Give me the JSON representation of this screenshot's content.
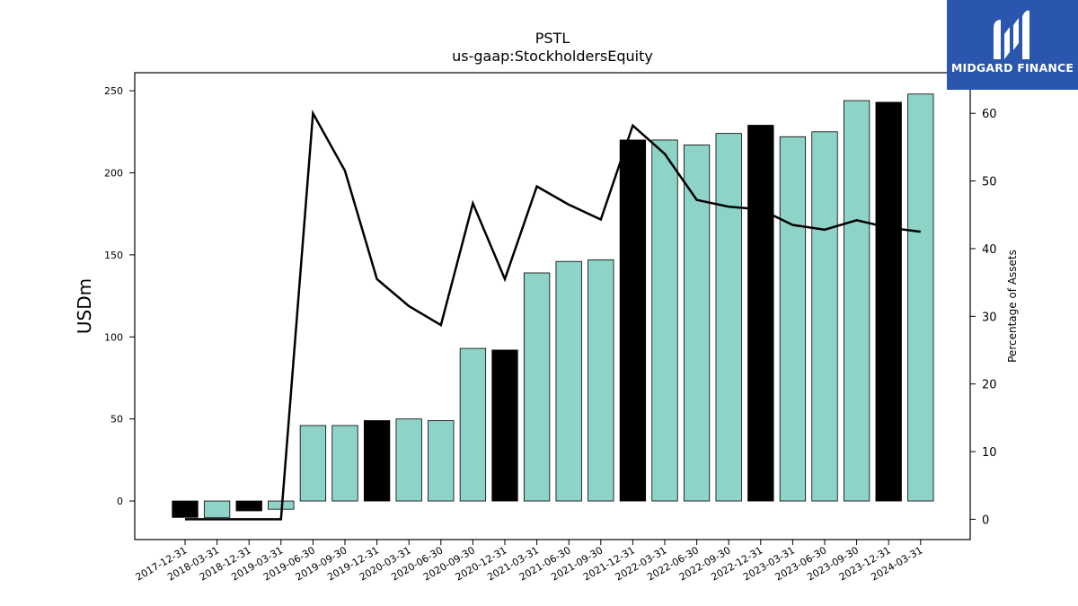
{
  "chart_data": {
    "type": "bar",
    "title": "PSTL",
    "subtitle": "us-gaap:StockholdersEquity",
    "ylabel": "USDm",
    "ylabel_right": "Percentage of Assets",
    "ylim": [
      -23.5,
      261
    ],
    "ylim_right": [
      -3,
      66
    ],
    "yticks": [
      0,
      50,
      100,
      150,
      200,
      250
    ],
    "yticks_right": [
      0,
      10,
      20,
      30,
      40,
      50,
      60
    ],
    "categories": [
      "2017-12-31",
      "2018-03-31",
      "2018-12-31",
      "2019-03-31",
      "2019-06-30",
      "2019-09-30",
      "2019-12-31",
      "2020-03-31",
      "2020-06-30",
      "2020-09-30",
      "2020-12-31",
      "2021-03-31",
      "2021-06-30",
      "2021-09-30",
      "2021-12-31",
      "2022-03-31",
      "2022-06-30",
      "2022-09-30",
      "2022-12-31",
      "2023-03-31",
      "2023-06-30",
      "2023-09-30",
      "2023-12-31",
      "2024-03-31"
    ],
    "series": [
      {
        "kind": "bar",
        "values": [
          -10,
          -10,
          -6,
          -5,
          46,
          46,
          49,
          50,
          49,
          93,
          92,
          139,
          146,
          147,
          220,
          220,
          217,
          224,
          229,
          222,
          225,
          244,
          243,
          248
        ],
        "colors": [
          "#000000",
          "#8dd3c7",
          "#000000",
          "#8dd3c7",
          "#8dd3c7",
          "#8dd3c7",
          "#000000",
          "#8dd3c7",
          "#8dd3c7",
          "#8dd3c7",
          "#000000",
          "#8dd3c7",
          "#8dd3c7",
          "#8dd3c7",
          "#000000",
          "#8dd3c7",
          "#8dd3c7",
          "#8dd3c7",
          "#000000",
          "#8dd3c7",
          "#8dd3c7",
          "#8dd3c7",
          "#000000",
          "#8dd3c7"
        ]
      },
      {
        "kind": "line",
        "axis": "right",
        "color": "#000000",
        "values": [
          0,
          0,
          0,
          0,
          60,
          51.5,
          35.5,
          31.5,
          28.7,
          46.7,
          35.5,
          49.2,
          46.5,
          44.3,
          58.2,
          54,
          47.2,
          46.2,
          45.8,
          43.5,
          42.8,
          44.2,
          43.1,
          42.5
        ]
      }
    ],
    "legend": "none",
    "grid": false
  },
  "brand": {
    "name": "MIDGARD FINANCE",
    "color": "#2a56ad"
  }
}
